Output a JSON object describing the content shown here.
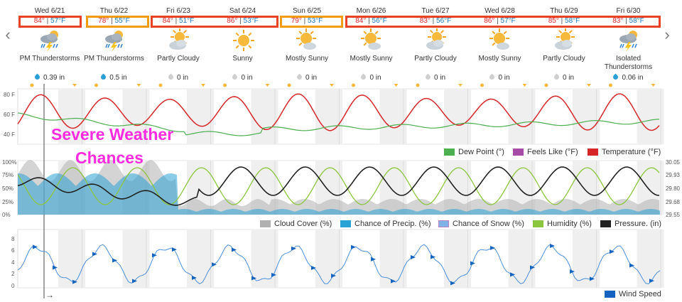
{
  "nav": {
    "prev_icon": "chevron-left-icon",
    "next_icon": "chevron-right-icon",
    "prev_glyph": "‹",
    "next_glyph": "›"
  },
  "forecast": [
    {
      "date": "Wed 6/21",
      "high": "84°",
      "low": "57°F",
      "icon": "thunderstorm-icon",
      "condition": "PM Thunderstorms",
      "precip": "0.39 in",
      "wet": true
    },
    {
      "date": "Thu 6/22",
      "high": "78°",
      "low": "55°F",
      "icon": "thunderstorm-icon",
      "condition": "PM Thunderstorms",
      "precip": "0.5 in",
      "wet": true
    },
    {
      "date": "Fri 6/23",
      "high": "84°",
      "low": "51°F",
      "icon": "partly-cloudy-icon",
      "condition": "Partly Cloudy",
      "precip": "0 in",
      "wet": false
    },
    {
      "date": "Sat 6/24",
      "high": "86°",
      "low": "53°F",
      "icon": "sunny-icon",
      "condition": "Sunny",
      "precip": "0 in",
      "wet": false
    },
    {
      "date": "Sun 6/25",
      "high": "79°",
      "low": "53°F",
      "icon": "mostly-sunny-icon",
      "condition": "Mostly Sunny",
      "precip": "0 in",
      "wet": false
    },
    {
      "date": "Mon 6/26",
      "high": "84°",
      "low": "56°F",
      "icon": "mostly-sunny-icon",
      "condition": "Mostly Sunny",
      "precip": "0 in",
      "wet": false
    },
    {
      "date": "Tue 6/27",
      "high": "83°",
      "low": "56°F",
      "icon": "partly-cloudy-icon",
      "condition": "Partly Cloudy",
      "precip": "0 in",
      "wet": false
    },
    {
      "date": "Wed 6/28",
      "high": "86°",
      "low": "57°F",
      "icon": "mostly-sunny-icon",
      "condition": "Mostly Sunny",
      "precip": "0 in",
      "wet": false
    },
    {
      "date": "Thu 6/29",
      "high": "85°",
      "low": "58°F",
      "icon": "partly-cloudy-icon",
      "condition": "Partly Cloudy",
      "precip": "0 in",
      "wet": false
    },
    {
      "date": "Fri 6/30",
      "high": "83°",
      "low": "58°F",
      "icon": "thunderstorm-icon",
      "condition": "Isolated Thunderstorms",
      "precip": "0.06 in",
      "wet": true
    }
  ],
  "highlight_colors": {
    "red": "#ea4225",
    "orange": "#f39c12"
  },
  "temp_chart": {
    "y_ticks": [
      "80 F",
      "60 F",
      "40 F"
    ],
    "legend": [
      {
        "label": "Dew Point (°)",
        "color": "#4caf50"
      },
      {
        "label": "Feels Like (°F)",
        "color": "#a64ca6"
      },
      {
        "label": "Temperature (°F)",
        "color": "#d62728"
      }
    ]
  },
  "precip_chart": {
    "y_ticks_left": [
      "100%",
      "75%",
      "50%",
      "25%",
      "0%"
    ],
    "y_ticks_right": [
      "30.05",
      "29.93",
      "29.80",
      "29.68",
      "29.55"
    ],
    "legend": [
      {
        "label": "Cloud Cover (%)",
        "color": "#b0b0b0"
      },
      {
        "label": "Chance of Precip. (%)",
        "color": "#29a3d6"
      },
      {
        "label": "Chance of Snow (%)",
        "color": "#7fb2e5"
      },
      {
        "label": "Humidity (%)",
        "color": "#8cc63f"
      },
      {
        "label": "Pressure. (in)",
        "color": "#222222"
      }
    ]
  },
  "wind_chart": {
    "y_ticks": [
      "8",
      "6",
      "4",
      "2",
      "0"
    ],
    "legend": [
      {
        "label": "Wind Speed",
        "color": "#1565c0"
      }
    ],
    "arrow_glyph": "→"
  },
  "overlay": {
    "line1": "Severe Weather",
    "line2": "Chances",
    "color": "#ff2be0"
  }
}
